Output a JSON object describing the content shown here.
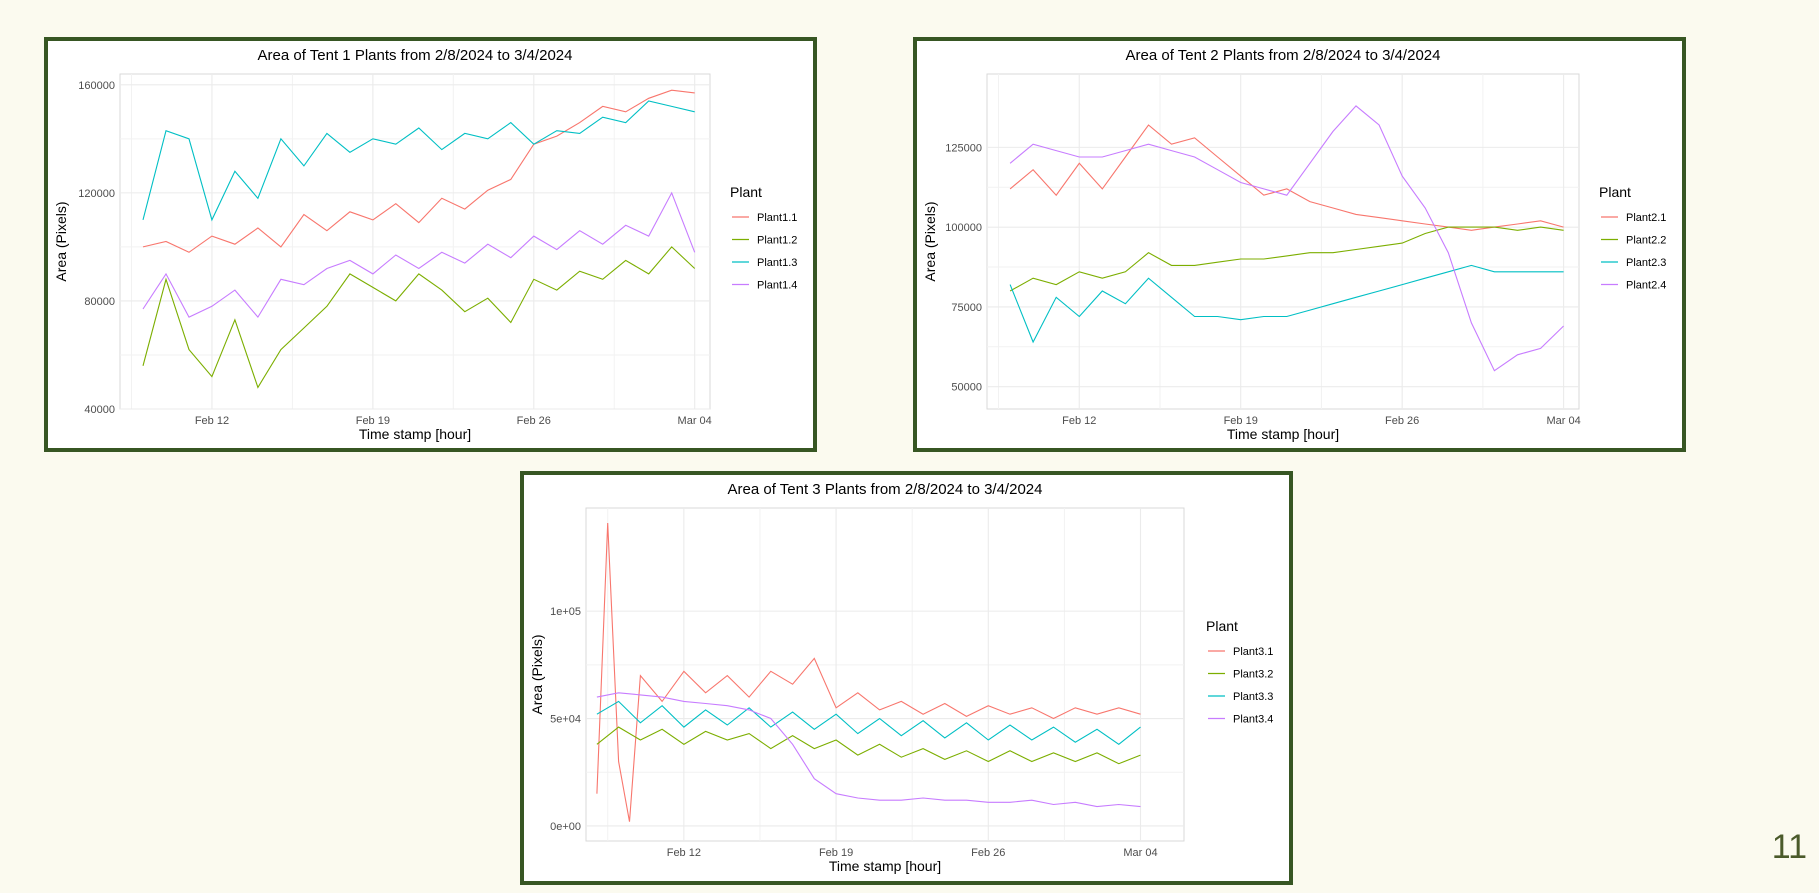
{
  "page_number": "11",
  "colors": {
    "frame": "#375623",
    "background": "#fbfaef",
    "grid": "#ebebeb",
    "plot_border": "#d9d9d9"
  },
  "chart_data": [
    {
      "type": "line",
      "title": "Area of Tent 1 Plants from 2/8/2024 to 3/4/2024",
      "xlabel": "Time stamp [hour]",
      "ylabel": "Area (Pixels)",
      "legend_title": "Plant",
      "legend_position": "right",
      "grid": true,
      "x_type": "date",
      "xlim": [
        "2024-02-08",
        "2024-03-04T16:00"
      ],
      "x_ticks": [
        "2024-02-12",
        "2024-02-19",
        "2024-02-26",
        "2024-03-04"
      ],
      "x_tick_labels": [
        "Feb 12",
        "Feb 19",
        "Feb 26",
        "Mar 04"
      ],
      "ylim": [
        40000,
        164000
      ],
      "y_ticks": [
        40000,
        80000,
        120000,
        160000
      ],
      "y_tick_labels": [
        "40000",
        "80000",
        "120000",
        "160000"
      ],
      "series": [
        {
          "name": "Plant1.1",
          "color": "#F8766D",
          "x": [
            "2024-02-09",
            "2024-02-10",
            "2024-02-11",
            "2024-02-12",
            "2024-02-13",
            "2024-02-14",
            "2024-02-15",
            "2024-02-16",
            "2024-02-17",
            "2024-02-18",
            "2024-02-19",
            "2024-02-20",
            "2024-02-21",
            "2024-02-22",
            "2024-02-23",
            "2024-02-24",
            "2024-02-25",
            "2024-02-26",
            "2024-02-27",
            "2024-02-28",
            "2024-02-29",
            "2024-03-01",
            "2024-03-02",
            "2024-03-03",
            "2024-03-04"
          ],
          "values": [
            100000,
            102000,
            98000,
            104000,
            101000,
            107000,
            100000,
            112000,
            106000,
            113000,
            110000,
            116000,
            109000,
            118000,
            114000,
            121000,
            125000,
            138000,
            141000,
            146000,
            152000,
            150000,
            155000,
            158000,
            157000
          ]
        },
        {
          "name": "Plant1.2",
          "color": "#7CAE00",
          "x": [
            "2024-02-09",
            "2024-02-10",
            "2024-02-11",
            "2024-02-12",
            "2024-02-13",
            "2024-02-14",
            "2024-02-15",
            "2024-02-16",
            "2024-02-17",
            "2024-02-18",
            "2024-02-19",
            "2024-02-20",
            "2024-02-21",
            "2024-02-22",
            "2024-02-23",
            "2024-02-24",
            "2024-02-25",
            "2024-02-26",
            "2024-02-27",
            "2024-02-28",
            "2024-02-29",
            "2024-03-01",
            "2024-03-02",
            "2024-03-03",
            "2024-03-04"
          ],
          "values": [
            56000,
            88000,
            62000,
            52000,
            73000,
            48000,
            62000,
            70000,
            78000,
            90000,
            85000,
            80000,
            90000,
            84000,
            76000,
            81000,
            72000,
            88000,
            84000,
            91000,
            88000,
            95000,
            90000,
            100000,
            92000
          ]
        },
        {
          "name": "Plant1.3",
          "color": "#00BFC4",
          "x": [
            "2024-02-09",
            "2024-02-10",
            "2024-02-11",
            "2024-02-12",
            "2024-02-13",
            "2024-02-14",
            "2024-02-15",
            "2024-02-16",
            "2024-02-17",
            "2024-02-18",
            "2024-02-19",
            "2024-02-20",
            "2024-02-21",
            "2024-02-22",
            "2024-02-23",
            "2024-02-24",
            "2024-02-25",
            "2024-02-26",
            "2024-02-27",
            "2024-02-28",
            "2024-02-29",
            "2024-03-01",
            "2024-03-02",
            "2024-03-03",
            "2024-03-04"
          ],
          "values": [
            110000,
            143000,
            140000,
            110000,
            128000,
            118000,
            140000,
            130000,
            142000,
            135000,
            140000,
            138000,
            144000,
            136000,
            142000,
            140000,
            146000,
            138000,
            143000,
            142000,
            148000,
            146000,
            154000,
            152000,
            150000
          ]
        },
        {
          "name": "Plant1.4",
          "color": "#C77CFF",
          "x": [
            "2024-02-09",
            "2024-02-10",
            "2024-02-11",
            "2024-02-12",
            "2024-02-13",
            "2024-02-14",
            "2024-02-15",
            "2024-02-16",
            "2024-02-17",
            "2024-02-18",
            "2024-02-19",
            "2024-02-20",
            "2024-02-21",
            "2024-02-22",
            "2024-02-23",
            "2024-02-24",
            "2024-02-25",
            "2024-02-26",
            "2024-02-27",
            "2024-02-28",
            "2024-02-29",
            "2024-03-01",
            "2024-03-02",
            "2024-03-03",
            "2024-03-04"
          ],
          "values": [
            77000,
            90000,
            74000,
            78000,
            84000,
            74000,
            88000,
            86000,
            92000,
            95000,
            90000,
            97000,
            92000,
            98000,
            94000,
            101000,
            96000,
            104000,
            99000,
            106000,
            101000,
            108000,
            104000,
            120000,
            98000
          ]
        }
      ]
    },
    {
      "type": "line",
      "title": "Area of Tent 2 Plants from 2/8/2024 to 3/4/2024",
      "xlabel": "Time stamp [hour]",
      "ylabel": "Area (Pixels)",
      "legend_title": "Plant",
      "legend_position": "right",
      "grid": true,
      "x_type": "date",
      "xlim": [
        "2024-02-08",
        "2024-03-04T16:00"
      ],
      "x_ticks": [
        "2024-02-12",
        "2024-02-19",
        "2024-02-26",
        "2024-03-04"
      ],
      "x_tick_labels": [
        "Feb 12",
        "Feb 19",
        "Feb 26",
        "Mar 04"
      ],
      "ylim": [
        43000,
        148000
      ],
      "y_ticks": [
        50000,
        75000,
        100000,
        125000
      ],
      "y_tick_labels": [
        "50000",
        "75000",
        "100000",
        "125000"
      ],
      "series": [
        {
          "name": "Plant2.1",
          "color": "#F8766D",
          "x": [
            "2024-02-09",
            "2024-02-10",
            "2024-02-11",
            "2024-02-12",
            "2024-02-13",
            "2024-02-14",
            "2024-02-15",
            "2024-02-16",
            "2024-02-17",
            "2024-02-18",
            "2024-02-19",
            "2024-02-20",
            "2024-02-21",
            "2024-02-22",
            "2024-02-23",
            "2024-02-24",
            "2024-02-25",
            "2024-02-26",
            "2024-02-27",
            "2024-02-28",
            "2024-02-29",
            "2024-03-01",
            "2024-03-02",
            "2024-03-03",
            "2024-03-04"
          ],
          "values": [
            112000,
            118000,
            110000,
            120000,
            112000,
            122000,
            132000,
            126000,
            128000,
            122000,
            116000,
            110000,
            112000,
            108000,
            106000,
            104000,
            103000,
            102000,
            101000,
            100000,
            99000,
            100000,
            101000,
            102000,
            100000
          ]
        },
        {
          "name": "Plant2.2",
          "color": "#7CAE00",
          "x": [
            "2024-02-09",
            "2024-02-10",
            "2024-02-11",
            "2024-02-12",
            "2024-02-13",
            "2024-02-14",
            "2024-02-15",
            "2024-02-16",
            "2024-02-17",
            "2024-02-18",
            "2024-02-19",
            "2024-02-20",
            "2024-02-21",
            "2024-02-22",
            "2024-02-23",
            "2024-02-24",
            "2024-02-25",
            "2024-02-26",
            "2024-02-27",
            "2024-02-28",
            "2024-02-29",
            "2024-03-01",
            "2024-03-02",
            "2024-03-03",
            "2024-03-04"
          ],
          "values": [
            80000,
            84000,
            82000,
            86000,
            84000,
            86000,
            92000,
            88000,
            88000,
            89000,
            90000,
            90000,
            91000,
            92000,
            92000,
            93000,
            94000,
            95000,
            98000,
            100000,
            100000,
            100000,
            99000,
            100000,
            99000
          ]
        },
        {
          "name": "Plant2.3",
          "color": "#00BFC4",
          "x": [
            "2024-02-09",
            "2024-02-10",
            "2024-02-11",
            "2024-02-12",
            "2024-02-13",
            "2024-02-14",
            "2024-02-15",
            "2024-02-16",
            "2024-02-17",
            "2024-02-18",
            "2024-02-19",
            "2024-02-20",
            "2024-02-21",
            "2024-02-22",
            "2024-02-23",
            "2024-02-24",
            "2024-02-25",
            "2024-02-26",
            "2024-02-27",
            "2024-02-28",
            "2024-02-29",
            "2024-03-01",
            "2024-03-02",
            "2024-03-03",
            "2024-03-04"
          ],
          "values": [
            82000,
            64000,
            78000,
            72000,
            80000,
            76000,
            84000,
            78000,
            72000,
            72000,
            71000,
            72000,
            72000,
            74000,
            76000,
            78000,
            80000,
            82000,
            84000,
            86000,
            88000,
            86000,
            86000,
            86000,
            86000
          ]
        },
        {
          "name": "Plant2.4",
          "color": "#C77CFF",
          "x": [
            "2024-02-09",
            "2024-02-10",
            "2024-02-11",
            "2024-02-12",
            "2024-02-13",
            "2024-02-14",
            "2024-02-15",
            "2024-02-16",
            "2024-02-17",
            "2024-02-18",
            "2024-02-19",
            "2024-02-20",
            "2024-02-21",
            "2024-02-22",
            "2024-02-23",
            "2024-02-24",
            "2024-02-25",
            "2024-02-26",
            "2024-02-27",
            "2024-02-28",
            "2024-02-29",
            "2024-03-01",
            "2024-03-02",
            "2024-03-03",
            "2024-03-04"
          ],
          "values": [
            120000,
            126000,
            124000,
            122000,
            122000,
            124000,
            126000,
            124000,
            122000,
            118000,
            114000,
            112000,
            110000,
            120000,
            130000,
            138000,
            132000,
            116000,
            106000,
            92000,
            70000,
            55000,
            60000,
            62000,
            69000
          ]
        }
      ]
    },
    {
      "type": "line",
      "title": "Area of Tent 3 Plants from 2/8/2024 to 3/4/2024",
      "xlabel": "Time stamp [hour]",
      "ylabel": "Area (Pixels)",
      "legend_title": "Plant",
      "legend_position": "right",
      "grid": true,
      "x_type": "date",
      "xlim": [
        "2024-02-07T12:00",
        "2024-03-06"
      ],
      "x_ticks": [
        "2024-02-12",
        "2024-02-19",
        "2024-02-26",
        "2024-03-04"
      ],
      "x_tick_labels": [
        "Feb 12",
        "Feb 19",
        "Feb 26",
        "Mar 04"
      ],
      "ylim": [
        -7000,
        148000
      ],
      "y_ticks": [
        0,
        50000,
        100000
      ],
      "y_tick_labels": [
        "0e+00",
        "5e+04",
        "1e+05"
      ],
      "series": [
        {
          "name": "Plant3.1",
          "color": "#F8766D",
          "x": [
            "2024-02-08",
            "2024-02-08T12:00",
            "2024-02-09",
            "2024-02-09T12:00",
            "2024-02-10",
            "2024-02-11",
            "2024-02-12",
            "2024-02-13",
            "2024-02-14",
            "2024-02-15",
            "2024-02-16",
            "2024-02-17",
            "2024-02-18",
            "2024-02-19",
            "2024-02-20",
            "2024-02-21",
            "2024-02-22",
            "2024-02-23",
            "2024-02-24",
            "2024-02-25",
            "2024-02-26",
            "2024-02-27",
            "2024-02-28",
            "2024-02-29",
            "2024-03-01",
            "2024-03-02",
            "2024-03-03",
            "2024-03-04"
          ],
          "values": [
            15000,
            141000,
            30000,
            2000,
            70000,
            58000,
            72000,
            62000,
            70000,
            60000,
            72000,
            66000,
            78000,
            55000,
            62000,
            54000,
            58000,
            52000,
            57000,
            51000,
            56000,
            52000,
            55000,
            50000,
            55000,
            52000,
            55000,
            52000
          ]
        },
        {
          "name": "Plant3.2",
          "color": "#7CAE00",
          "x": [
            "2024-02-08",
            "2024-02-09",
            "2024-02-10",
            "2024-02-11",
            "2024-02-12",
            "2024-02-13",
            "2024-02-14",
            "2024-02-15",
            "2024-02-16",
            "2024-02-17",
            "2024-02-18",
            "2024-02-19",
            "2024-02-20",
            "2024-02-21",
            "2024-02-22",
            "2024-02-23",
            "2024-02-24",
            "2024-02-25",
            "2024-02-26",
            "2024-02-27",
            "2024-02-28",
            "2024-02-29",
            "2024-03-01",
            "2024-03-02",
            "2024-03-03",
            "2024-03-04"
          ],
          "values": [
            38000,
            46000,
            40000,
            45000,
            38000,
            44000,
            40000,
            43000,
            36000,
            42000,
            36000,
            40000,
            33000,
            38000,
            32000,
            36000,
            31000,
            35000,
            30000,
            35000,
            30000,
            34000,
            30000,
            34000,
            29000,
            33000
          ]
        },
        {
          "name": "Plant3.3",
          "color": "#00BFC4",
          "x": [
            "2024-02-08",
            "2024-02-09",
            "2024-02-10",
            "2024-02-11",
            "2024-02-12",
            "2024-02-13",
            "2024-02-14",
            "2024-02-15",
            "2024-02-16",
            "2024-02-17",
            "2024-02-18",
            "2024-02-19",
            "2024-02-20",
            "2024-02-21",
            "2024-02-22",
            "2024-02-23",
            "2024-02-24",
            "2024-02-25",
            "2024-02-26",
            "2024-02-27",
            "2024-02-28",
            "2024-02-29",
            "2024-03-01",
            "2024-03-02",
            "2024-03-03",
            "2024-03-04"
          ],
          "values": [
            52000,
            58000,
            48000,
            56000,
            46000,
            54000,
            47000,
            55000,
            46000,
            53000,
            45000,
            52000,
            43000,
            50000,
            42000,
            49000,
            41000,
            48000,
            40000,
            47000,
            40000,
            46000,
            39000,
            45000,
            38000,
            46000
          ]
        },
        {
          "name": "Plant3.4",
          "color": "#C77CFF",
          "x": [
            "2024-02-08",
            "2024-02-09",
            "2024-02-10",
            "2024-02-11",
            "2024-02-12",
            "2024-02-13",
            "2024-02-14",
            "2024-02-15",
            "2024-02-16",
            "2024-02-17",
            "2024-02-18",
            "2024-02-19",
            "2024-02-20",
            "2024-02-21",
            "2024-02-22",
            "2024-02-23",
            "2024-02-24",
            "2024-02-25",
            "2024-02-26",
            "2024-02-27",
            "2024-02-28",
            "2024-02-29",
            "2024-03-01",
            "2024-03-02",
            "2024-03-03",
            "2024-03-04"
          ],
          "values": [
            60000,
            62000,
            61000,
            60000,
            58000,
            57000,
            56000,
            54000,
            50000,
            38000,
            22000,
            15000,
            13000,
            12000,
            12000,
            13000,
            12000,
            12000,
            11000,
            11000,
            12000,
            10000,
            11000,
            9000,
            10000,
            9000
          ]
        }
      ]
    }
  ]
}
